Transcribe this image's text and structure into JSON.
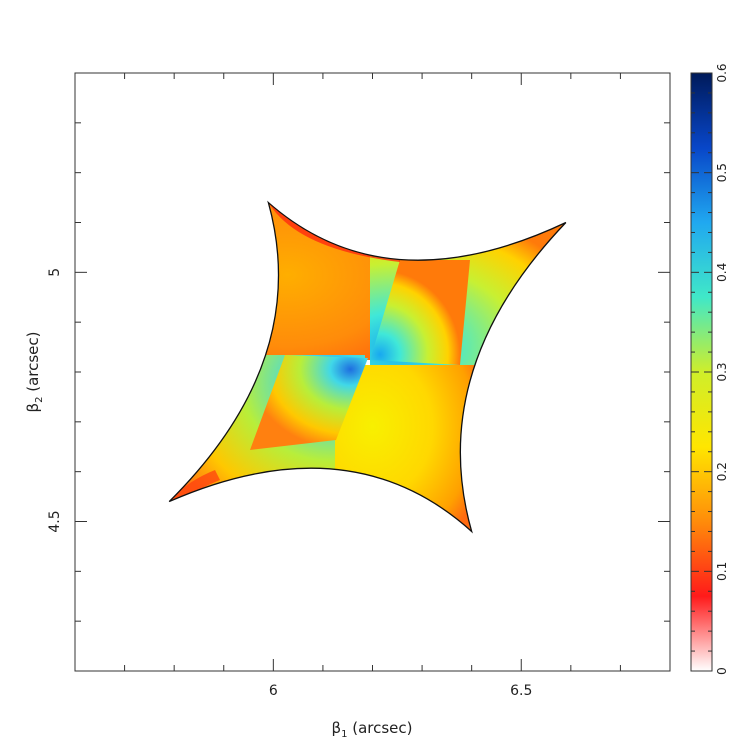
{
  "chart_data": {
    "type": "heatmap",
    "xlabel_symbol": "β",
    "xlabel_sub": "1",
    "xlabel_unit": " (arcsec)",
    "ylabel_symbol": "β",
    "ylabel_sub": "2",
    "ylabel_unit": " (arcsec)",
    "xlim": [
      5.6,
      6.8
    ],
    "ylim": [
      4.2,
      5.4
    ],
    "x_ticks": [
      6,
      6.5
    ],
    "x_tick_labels": [
      "6",
      "6.5"
    ],
    "y_ticks": [
      4.5,
      5
    ],
    "y_tick_labels": [
      "4.5",
      "5"
    ],
    "caustic_cusps": [
      {
        "x": 5.99,
        "y": 5.14
      },
      {
        "x": 6.59,
        "y": 5.1
      },
      {
        "x": 6.4,
        "y": 4.48
      },
      {
        "x": 5.79,
        "y": 4.54
      }
    ],
    "colorbar": {
      "min": 0,
      "max": 0.6,
      "ticks": [
        0,
        0.1,
        0.2,
        0.3,
        0.4,
        0.5,
        0.6
      ],
      "tick_labels": [
        "0",
        "0.1",
        "0.2",
        "0.3",
        "0.4",
        "0.5",
        "0.6"
      ],
      "colors": [
        "#ffffff",
        "#ff1a1a",
        "#ff8c0a",
        "#ffe600",
        "#cfee2a",
        "#40e8c8",
        "#20a8f0",
        "#0846c8",
        "#001a5a"
      ]
    },
    "quadrant_mean_values": {
      "upper_left": 0.1,
      "upper_right": 0.38,
      "lower_left": 0.27,
      "lower_right": 0.17
    }
  }
}
